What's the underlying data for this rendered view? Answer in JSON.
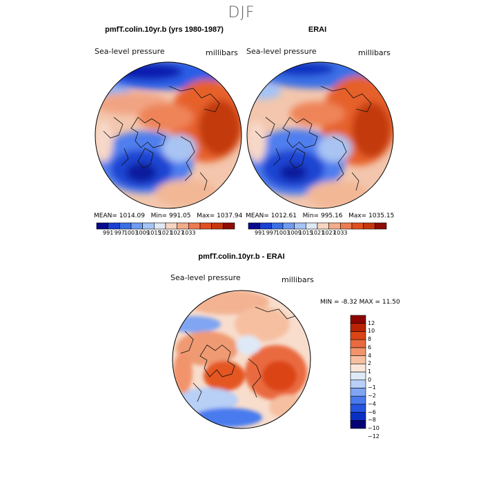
{
  "season_title": "DJF",
  "colors": {
    "cmap_abs": [
      "#08088e",
      "#1a3fd1",
      "#3a6fe6",
      "#6f9cf0",
      "#a5c3f5",
      "#e0e8f5",
      "#f7d5c2",
      "#f2ac8a",
      "#ec7b52",
      "#e2501e",
      "#c7360b",
      "#8e0c05"
    ],
    "cmap_diff": [
      "#030375",
      "#0a2fc4",
      "#2554e0",
      "#4a7aee",
      "#7fa5f3",
      "#b8cff6",
      "#dfe8f6",
      "#fae7da",
      "#f6c0a0",
      "#f1946c",
      "#ea6a3f",
      "#db4516",
      "#b92304",
      "#8b0500"
    ]
  },
  "chart_data": [
    {
      "type": "heatmap",
      "panel": "model",
      "title": "pmfT.colin.10yr.b (yrs 1980-1987)",
      "left_label": "Sea-level pressure",
      "right_label": "millibars",
      "stats": {
        "mean_label": "MEAN=",
        "mean": "1014.09",
        "min_label": "Min=",
        "min": "991.05",
        "max_label": "Max=",
        "max": "1037.94"
      },
      "colorbar_ticks": [
        "991",
        "997",
        "1003",
        "1009",
        "1015",
        "1021",
        "1027",
        "1033"
      ]
    },
    {
      "type": "heatmap",
      "panel": "obs",
      "title": "ERAI",
      "left_label": "Sea-level pressure",
      "right_label": "millibars",
      "stats": {
        "mean_label": "MEAN=",
        "mean": "1012.61",
        "min_label": "Min=",
        "min": "995.16",
        "max_label": "Max=",
        "max": "1035.15"
      },
      "colorbar_ticks": [
        "991",
        "997",
        "1003",
        "1009",
        "1015",
        "1021",
        "1027",
        "1033"
      ]
    },
    {
      "type": "heatmap",
      "panel": "diff",
      "title": "pmfT.colin.10yr.b - ERAI",
      "left_label": "Sea-level pressure",
      "right_label": "millibars",
      "stats": {
        "min_label": "MIN =",
        "min": "-8.32",
        "max_label": "MAX =",
        "max": "11.50"
      },
      "colorbar_ticks": [
        "12",
        "10",
        "8",
        "6",
        "4",
        "2",
        "1",
        "0",
        "−1",
        "−2",
        "−4",
        "−6",
        "−8",
        "−10",
        "−12"
      ]
    }
  ]
}
